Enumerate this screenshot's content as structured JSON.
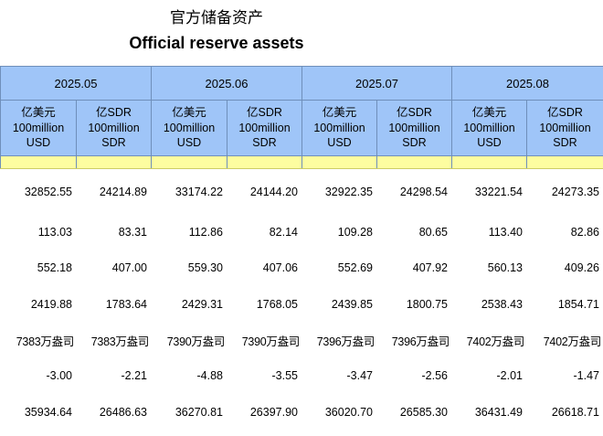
{
  "title": {
    "cn": "官方储备资产",
    "en": "Official reserve assets"
  },
  "periods": [
    "2025.05",
    "2025.06",
    "2025.07",
    "2025.08"
  ],
  "unit_headers": {
    "usd": [
      "亿美元",
      "100million",
      "USD"
    ],
    "sdr": [
      "亿SDR",
      "100million",
      "SDR"
    ]
  },
  "rows": [
    [
      "32852.55",
      "24214.89",
      "33174.22",
      "24144.20",
      "32922.35",
      "24298.54",
      "33221.54",
      "24273.35"
    ],
    [
      "113.03",
      "83.31",
      "112.86",
      "82.14",
      "109.28",
      "80.65",
      "113.40",
      "82.86"
    ],
    [
      "552.18",
      "407.00",
      "559.30",
      "407.06",
      "552.69",
      "407.92",
      "560.13",
      "409.26"
    ],
    [
      "2419.88",
      "1783.64",
      "2429.31",
      "1768.05",
      "2439.85",
      "1800.75",
      "2538.43",
      "1854.71"
    ],
    [
      "7383万盎司",
      "7383万盎司",
      "7390万盎司",
      "7390万盎司",
      "7396万盎司",
      "7396万盎司",
      "7402万盎司",
      "7402万盎司"
    ],
    [
      "-3.00",
      "-2.21",
      "-4.88",
      "-3.55",
      "-3.47",
      "-2.56",
      "-2.01",
      "-1.47"
    ],
    [
      "35934.64",
      "26486.63",
      "36270.81",
      "26397.90",
      "36020.70",
      "26585.30",
      "36431.49",
      "26618.71"
    ]
  ],
  "colors": {
    "header_blue": "#9fc5f8",
    "spacer_yellow": "#fdfda0",
    "border": "#6f8fba"
  }
}
